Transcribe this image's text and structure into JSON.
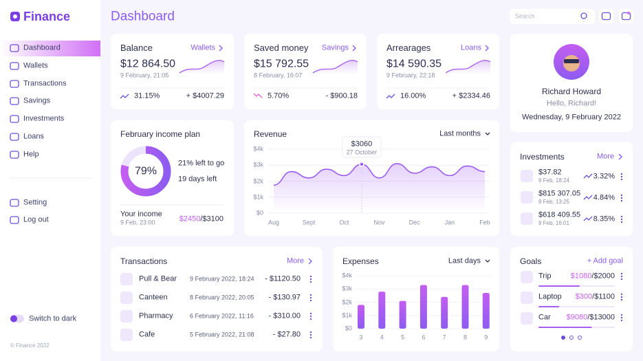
{
  "brand": "Finance",
  "nav": [
    "Dashboard",
    "Wallets",
    "Transactions",
    "Savings",
    "Investments",
    "Loans",
    "Help"
  ],
  "nav2": [
    "Setting",
    "Log out"
  ],
  "dark_toggle": "Switch to dark",
  "footer": "© Finance 2022",
  "header": {
    "title": "Dashboard",
    "search": "Search"
  },
  "summary": [
    {
      "title": "Balance",
      "link": "Wallets",
      "amount": "$12 864.50",
      "date": "9 February, 21:05",
      "change": "31.15%",
      "delta": "+ $4007.29",
      "trend": "up"
    },
    {
      "title": "Saved money",
      "link": "Savings",
      "amount": "$15 792.55",
      "date": "8 February, 16:07",
      "change": "5.70%",
      "delta": "- $900.18",
      "trend": "down"
    },
    {
      "title": "Arrearages",
      "link": "Loans",
      "amount": "$14 590.35",
      "date": "9 February, 22:18",
      "change": "16.00%",
      "delta": "+ $2334.46",
      "trend": "up"
    }
  ],
  "profile": {
    "name": "Richard Howard",
    "greeting": "Hello, Richard!",
    "date": "Wednesday, 9 February 2022"
  },
  "income_plan": {
    "title": "February income plan",
    "percent": 79,
    "percent_label": "79%",
    "left": "21% left to go",
    "days": "19 days left",
    "income_label": "Your income",
    "income_date": "9 Feb, 23:00",
    "income": "$2450",
    "target": "/$3100"
  },
  "revenue": {
    "type": "line",
    "title": "Revenue",
    "period": "Last months",
    "categories": [
      "Aug",
      null,
      "Sept",
      null,
      "Oct",
      null,
      "Nov",
      null,
      "Dec",
      null,
      "Jan",
      null,
      "Feb"
    ],
    "values": [
      1750,
      2600,
      2200,
      2750,
      2350,
      3060,
      2200,
      3100,
      2500,
      2900,
      2350,
      2950,
      2600
    ],
    "ylim": [
      0,
      4000
    ],
    "yticks": [
      {
        "value": 0,
        "label": "$0"
      },
      {
        "value": 1000,
        "label": "$1k"
      },
      {
        "value": 2000,
        "label": "$2k"
      },
      {
        "value": 3000,
        "label": "$3k"
      },
      {
        "value": 4000,
        "label": "$4k"
      }
    ],
    "color": "#9b5cf0",
    "annotation": {
      "value": 3060,
      "label": "$3060",
      "date": "27 October"
    }
  },
  "investments": {
    "title": "Investments",
    "more": "More",
    "items": [
      {
        "amount": "$37.82",
        "date": "9 Feb, 18:24",
        "change": "3.32%"
      },
      {
        "amount": "$815 307.05",
        "date": "9 Feb, 13:25",
        "change": "4.84%"
      },
      {
        "amount": "$618 409.55",
        "date": "8 Feb, 16:01",
        "change": "8.35%"
      }
    ]
  },
  "transactions": {
    "title": "Transactions",
    "more": "More",
    "rows": [
      {
        "name": "Pull & Bear",
        "date": "9 February 2022, 18:24",
        "amount": "- $1120.50"
      },
      {
        "name": "Canteen",
        "date": "8 February 2022, 20:05",
        "amount": "- $130.97"
      },
      {
        "name": "Pharmacy",
        "date": "6 February 2022, 11:16",
        "amount": "- $310.00"
      },
      {
        "name": "Cafe",
        "date": "5 February 2022, 21:08",
        "amount": "- $27.80"
      }
    ]
  },
  "expenses": {
    "type": "bar",
    "title": "Expenses",
    "period": "Last days",
    "categories": [
      "3",
      "4",
      "5",
      "6",
      "7",
      "8",
      "9"
    ],
    "values": [
      1800,
      2800,
      2100,
      3300,
      2400,
      3300,
      2700
    ],
    "ylim": [
      0,
      4000
    ],
    "yticks": [
      {
        "value": 0,
        "label": "$0"
      },
      {
        "value": 1000,
        "label": "$1k"
      },
      {
        "value": 2000,
        "label": "$2k"
      },
      {
        "value": 3000,
        "label": "$3k"
      },
      {
        "value": 4000,
        "label": "$4k"
      }
    ],
    "color": "#a35ef2"
  },
  "goals": {
    "title": "Goals",
    "add": "+ Add goal",
    "items": [
      {
        "name": "Trip",
        "current": 1080,
        "current_label": "$1080",
        "target": 2000,
        "target_label": "/$2000"
      },
      {
        "name": "Laptop",
        "current": 300,
        "current_label": "$300",
        "target": 1100,
        "target_label": "/$1100"
      },
      {
        "name": "Car",
        "current": 9080,
        "current_label": "$9080",
        "target": 13000,
        "target_label": "/$13000"
      }
    ]
  }
}
